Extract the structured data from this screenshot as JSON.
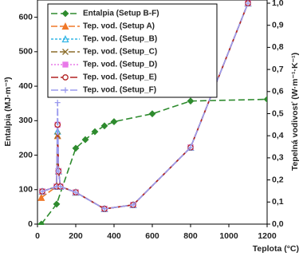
{
  "chart_data": {
    "type": "line",
    "xlabel": "Teplota (°C)",
    "ylabel": "Entalpia (MJ·m⁻³)",
    "y2label": "Tepelná vodivosť (W·m⁻¹·K⁻¹)",
    "xlim": [
      0,
      1200
    ],
    "xticks": [
      0,
      200,
      400,
      600,
      800,
      1000,
      1200
    ],
    "ylim": [
      0,
      650
    ],
    "yticks": [
      0,
      100,
      200,
      300,
      400,
      500,
      600
    ],
    "y2lim": [
      0,
      1.0
    ],
    "y2ticks": [
      {
        "value": 0,
        "label": "0,0"
      },
      {
        "value": 0.1,
        "label": "0,1"
      },
      {
        "value": 0.2,
        "label": "0,2"
      },
      {
        "value": 0.3,
        "label": "0,3"
      },
      {
        "value": 0.4,
        "label": "0,4"
      },
      {
        "value": 0.5,
        "label": "0,5"
      },
      {
        "value": 0.6,
        "label": "0,6"
      },
      {
        "value": 0.7,
        "label": "0,7"
      },
      {
        "value": 0.8,
        "label": "0,8"
      },
      {
        "value": 0.9,
        "label": "0,9"
      },
      {
        "value": 1.0,
        "label": "1,0"
      }
    ],
    "series": [
      {
        "name": "Entalpia (Setup B-F)",
        "color": "#2e8b2e",
        "marker": "diamond",
        "dash": "8 4",
        "x": [
          20,
          100,
          200,
          250,
          300,
          350,
          400,
          600,
          800,
          1200
        ],
        "values": [
          0,
          58,
          220,
          245,
          268,
          285,
          297,
          320,
          357,
          362
        ]
      },
      {
        "name": "Tep. vod. (Setup A)",
        "color": "#f07828",
        "marker": "triangle",
        "dash": "8 3",
        "axis": "y2",
        "x": [
          20,
          100,
          105,
          110,
          120,
          200,
          350,
          500,
          800,
          1100
        ],
        "values": [
          0.12,
          0.17,
          0.4,
          0.24,
          0.17,
          0.144,
          0.069,
          0.087,
          0.347,
          1.0
        ]
      },
      {
        "name": "Tep. vod. (Setup_B)",
        "color": "#33b5e5",
        "marker": "triangle-open",
        "dash": "3 2",
        "axis": "y2",
        "x": [
          25,
          100,
          105,
          110,
          120,
          200,
          350,
          500,
          800,
          1100
        ],
        "values": [
          0.148,
          0.17,
          0.42,
          0.24,
          0.17,
          0.144,
          0.069,
          0.087,
          0.347,
          1.0
        ]
      },
      {
        "name": "Tep. vod. (Setup_C)",
        "color": "#8b6d2a",
        "marker": "x",
        "dash": "8 3",
        "axis": "y2",
        "x": [
          25,
          100,
          105,
          110,
          120,
          200,
          350,
          500,
          800,
          1100
        ],
        "values": [
          0.148,
          0.17,
          0.4,
          0.24,
          0.17,
          0.144,
          0.069,
          0.087,
          0.347,
          1.0
        ]
      },
      {
        "name": "Tep. vod. (Setup_D)",
        "color": "#e879e8",
        "marker": "square",
        "dash": "2 2",
        "axis": "y2",
        "x": [
          25,
          100,
          105,
          110,
          120,
          200,
          350,
          500,
          800,
          1100
        ],
        "values": [
          0.148,
          0.17,
          0.45,
          0.24,
          0.17,
          0.144,
          0.069,
          0.087,
          0.347,
          1.0
        ]
      },
      {
        "name": "Tep. vod. (Setup_E)",
        "color": "#b22222",
        "marker": "circle",
        "dash": "9 3",
        "axis": "y2",
        "x": [
          25,
          100,
          105,
          110,
          120,
          200,
          350,
          500,
          800,
          1100
        ],
        "values": [
          0.148,
          0.17,
          0.45,
          0.24,
          0.17,
          0.144,
          0.069,
          0.087,
          0.347,
          1.0
        ]
      },
      {
        "name": "Tep. vod. (Setup_F)",
        "color": "#9a9aee",
        "marker": "plus",
        "dash": "9 3",
        "axis": "y2",
        "x": [
          25,
          100,
          105,
          110,
          120,
          200,
          350,
          500,
          800,
          1100
        ],
        "values": [
          0.148,
          0.17,
          0.55,
          0.24,
          0.17,
          0.144,
          0.069,
          0.087,
          0.347,
          1.0
        ]
      }
    ]
  }
}
